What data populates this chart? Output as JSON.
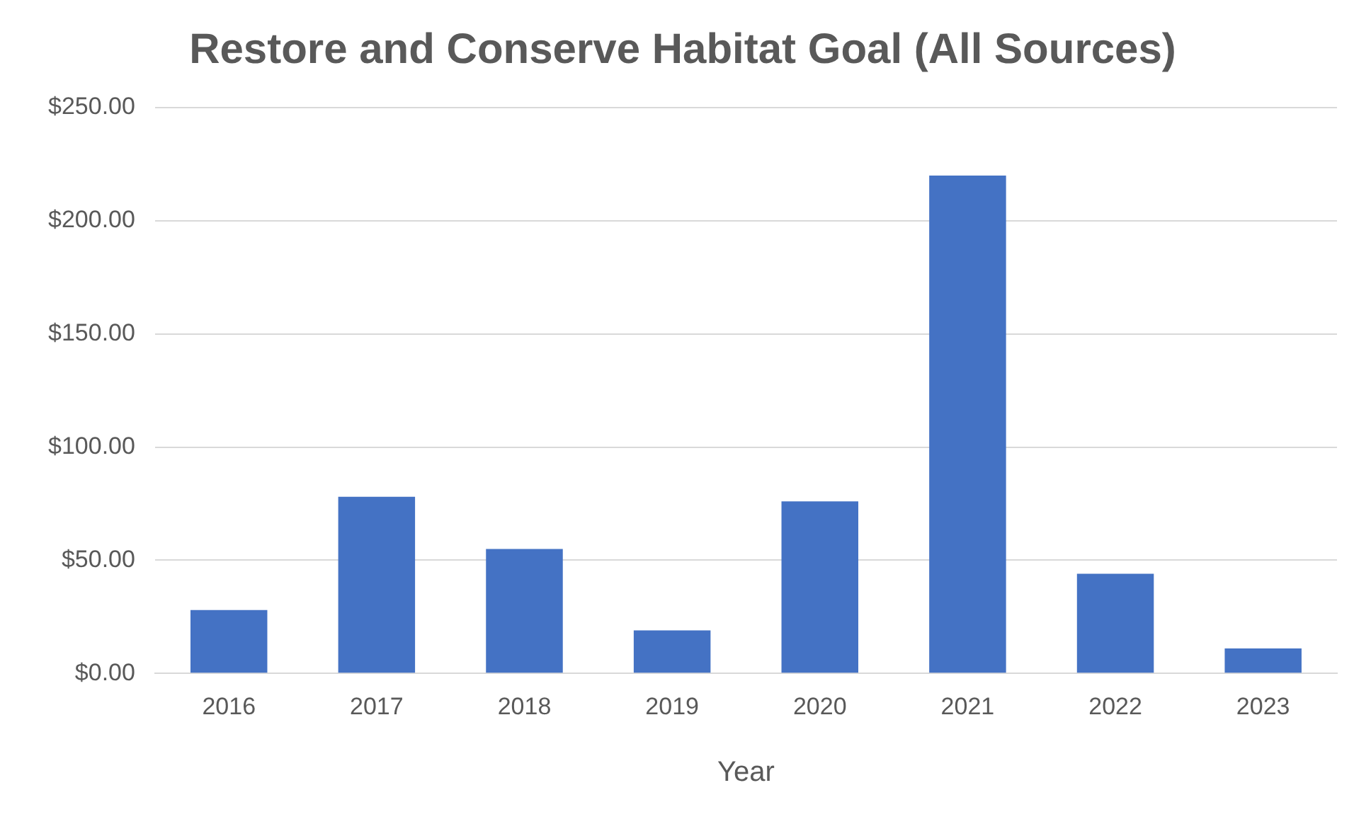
{
  "chart_data": {
    "type": "bar",
    "title": "Restore and Conserve Habitat Goal (All Sources)",
    "xlabel": "Year",
    "categories": [
      "2016",
      "2017",
      "2018",
      "2019",
      "2020",
      "2021",
      "2022",
      "2023"
    ],
    "values": [
      28,
      78,
      55,
      19,
      76,
      220,
      44,
      11
    ],
    "color": "#4472c4",
    "ylim": [
      0,
      250
    ],
    "yticks": [
      {
        "value": 0,
        "label": "$0.00"
      },
      {
        "value": 50,
        "label": "$50.00"
      },
      {
        "value": 100,
        "label": "$100.00"
      },
      {
        "value": 150,
        "label": "$150.00"
      },
      {
        "value": 200,
        "label": "$200.00"
      },
      {
        "value": 250,
        "label": "$250.00"
      }
    ],
    "grid": "y",
    "legend": false
  }
}
